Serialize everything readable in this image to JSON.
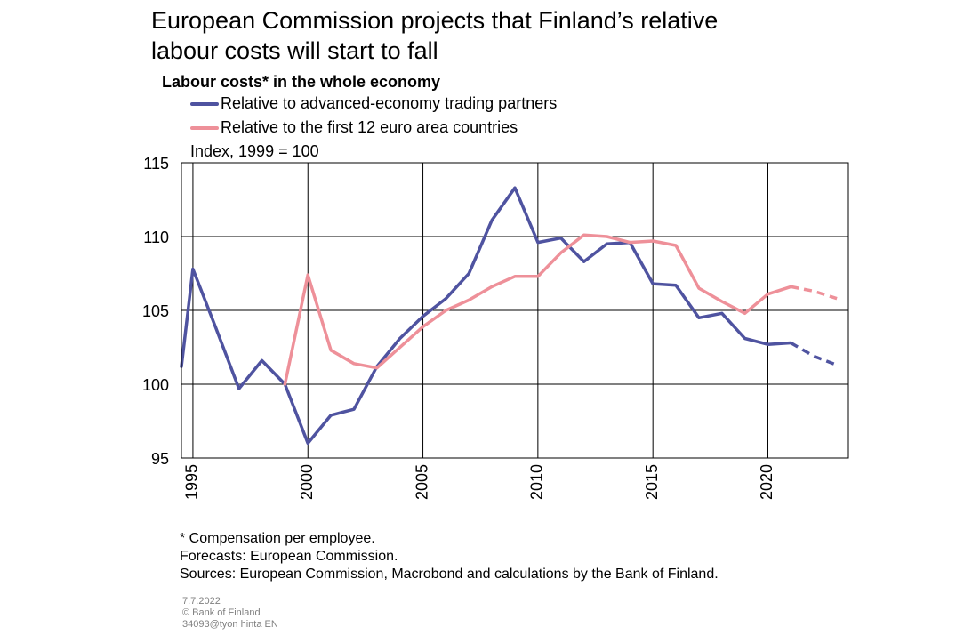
{
  "title_line1": "European Commission projects that Finland’s relative",
  "title_line2": "labour costs will start to fall",
  "chart_data": {
    "type": "line",
    "title": "European Commission projects that Finland’s relative labour costs will start to fall",
    "subtitle": "Labour costs* in the whole economy",
    "ylabel": "Index, 1999 = 100",
    "xlabel": "",
    "xlim": [
      1994.5,
      2023.5
    ],
    "ylim": [
      95,
      115
    ],
    "yticks": [
      95,
      100,
      105,
      110,
      115
    ],
    "xticks": [
      1995,
      2000,
      2005,
      2010,
      2015,
      2020
    ],
    "grid": true,
    "legend_position": "top-left",
    "forecast_from": 2021,
    "series": [
      {
        "name": "Relative to advanced-economy trading partners",
        "color": "#4f53a0",
        "x": [
          1994.5,
          1995,
          1996,
          1997,
          1998,
          1999,
          2000,
          2001,
          2002,
          2003,
          2004,
          2005,
          2006,
          2007,
          2008,
          2009,
          2010,
          2011,
          2012,
          2013,
          2014,
          2015,
          2016,
          2017,
          2018,
          2019,
          2020,
          2021,
          2022,
          2023
        ],
        "y": [
          101.2,
          107.8,
          103.8,
          99.7,
          101.6,
          100.0,
          96.0,
          97.9,
          98.3,
          101.2,
          103.1,
          104.6,
          105.8,
          107.5,
          111.1,
          113.3,
          109.6,
          109.9,
          108.3,
          109.5,
          109.6,
          106.8,
          106.7,
          104.5,
          104.8,
          103.1,
          102.7,
          102.8,
          101.9,
          101.3
        ]
      },
      {
        "name": "Relative to the first 12 euro area countries",
        "color": "#ee9099",
        "x": [
          1999,
          2000,
          2001,
          2002,
          2003,
          2004,
          2005,
          2006,
          2007,
          2008,
          2009,
          2010,
          2011,
          2012,
          2013,
          2014,
          2015,
          2016,
          2017,
          2018,
          2019,
          2020,
          2021,
          2022,
          2023
        ],
        "y": [
          100.0,
          107.4,
          102.3,
          101.4,
          101.1,
          102.5,
          103.9,
          105.0,
          105.7,
          106.6,
          107.3,
          107.3,
          108.9,
          110.1,
          110.0,
          109.6,
          109.7,
          109.4,
          106.5,
          105.6,
          104.8,
          106.1,
          106.6,
          106.3,
          105.8
        ]
      }
    ]
  },
  "notes": {
    "line1": "* Compensation per employee.",
    "line2": "Forecasts: European Commission.",
    "line3": "Sources: European Commission, Macrobond and calculations by the Bank of Finland."
  },
  "meta": {
    "date": "7.7.2022",
    "copyright": "© Bank of Finland",
    "code": "34093@tyon hinta EN"
  }
}
